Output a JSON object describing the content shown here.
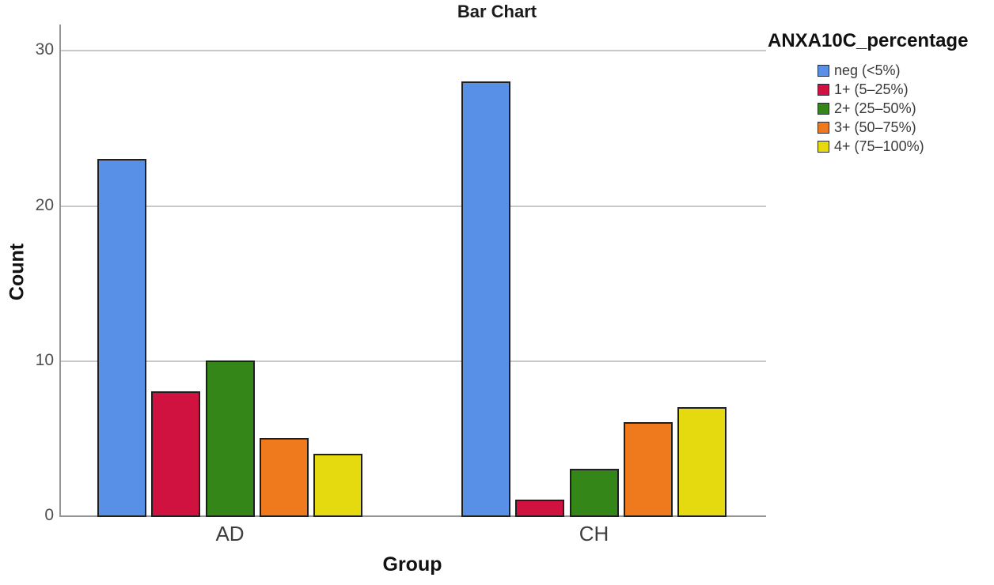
{
  "chart_data": {
    "type": "bar",
    "title": "Bar Chart",
    "xlabel": "Group",
    "ylabel": "Count",
    "categories": [
      "AD",
      "CH"
    ],
    "series": [
      {
        "name": "neg (<5%)",
        "color": "#5890E8",
        "values": [
          23,
          28
        ]
      },
      {
        "name": "1+ (5–25%)",
        "color": "#D01240",
        "values": [
          8,
          1
        ]
      },
      {
        "name": "2+ (25–50%)",
        "color": "#338617",
        "values": [
          10,
          3
        ]
      },
      {
        "name": "3+ (50–75%)",
        "color": "#EF7A1E",
        "values": [
          5,
          6
        ]
      },
      {
        "name": "4+ (75–100%)",
        "color": "#E5DA10",
        "values": [
          4,
          7
        ]
      }
    ],
    "legend_title": "ANXA10C_percentage",
    "legend_position": "right",
    "yticks": [
      0,
      10,
      20,
      30
    ],
    "ylim": [
      0,
      31.6
    ],
    "grid": true,
    "grouped": true
  },
  "style_colors": {
    "bar_border": "#1f1f1f",
    "axis_line": "#949494",
    "gridline": "#c9c9c9",
    "tick_label": "#4f4f4f",
    "category_label": "#3d3d3d",
    "title_text": "#1a1a1a",
    "background": "#ffffff"
  }
}
